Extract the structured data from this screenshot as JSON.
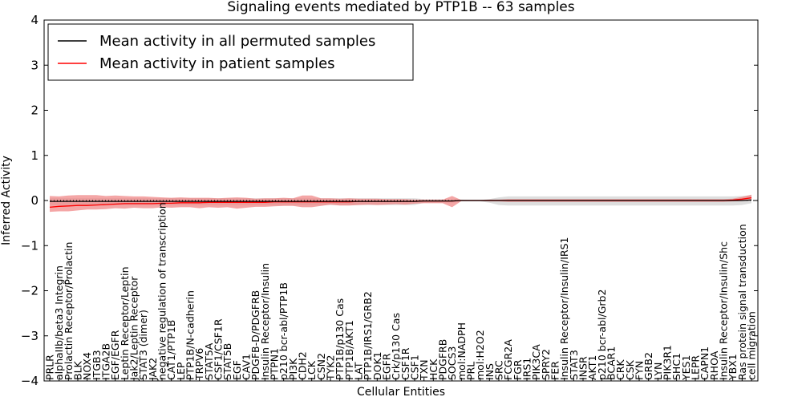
{
  "chart_data": {
    "type": "line",
    "title": "Signaling events mediated by PTP1B -- 63 samples",
    "xlabel": "Cellular Entities",
    "ylabel": "Inferred Activity",
    "ylim": [
      -4,
      4
    ],
    "yticks": [
      -4,
      -3,
      -2,
      -1,
      0,
      1,
      2,
      3,
      4
    ],
    "ytick_labels": [
      "−4",
      "−3",
      "−2",
      "−1",
      "0",
      "1",
      "2",
      "3",
      "4"
    ],
    "legend_position": "top-left",
    "categories": [
      "PRLR",
      "alphaIIb/beta3 Integrin",
      "Prolactin Receptor/Prolactin",
      "BLK",
      "NOX4",
      "ITGB3",
      "ITGA2B",
      "EGF/EGFR",
      "Leptin Receptor/Leptin",
      "Jak2/Leptin Receptor",
      "STAT3 (dimer)",
      "JAK2",
      "negative regulation of transcription",
      "CAT1/PTP1B",
      "LEP",
      "PTP1B/N-cadherin",
      "TRPV6",
      "STAT5A",
      "CSF1/CSF1R",
      "STAT5B",
      "EGF",
      "CAV1",
      "PDGFB-D/PDGFRB",
      "Insulin Receptor/Insulin",
      "PTPN1",
      "p210 bcr-abl/PTP1B",
      "PI3K",
      "CDH2",
      "LCK",
      "CSN2",
      "TYK2",
      "PTP1B/p130 Cas",
      "PTP1B/AKT1",
      "LAT",
      "PTP1B/IRS1/GRB2",
      "DOK1",
      "EGFR",
      "Crk/p130 Cas",
      "CSF1R",
      "CSF1",
      "TXN",
      "HCK",
      "PDGFRB",
      "SOCS3",
      "mol:NADPH",
      "PRL",
      "mol:H2O2",
      "INS",
      "SRC",
      "FCGR2A",
      "FGR",
      "IRS1",
      "PIK3CA",
      "SPRY2",
      "FER",
      "Insulin Receptor/Insulin/IRS1",
      "STAT3",
      "INSR",
      "AKT1",
      "p210 bcr-abl/Grb2",
      "BCAR1",
      "CRK",
      "CSK",
      "FYN",
      "GRB2",
      "LYN",
      "PIK3R1",
      "SHC1",
      "YES1",
      "LEPR",
      "CAPN1",
      "RHOA",
      "Insulin Receptor/Insulin/Shc",
      "YBX1",
      "Ras protein signal transduction",
      "cell migration"
    ],
    "series": [
      {
        "name": "Mean activity in all permuted samples",
        "color": "#000000",
        "values": [
          -0.02,
          -0.02,
          -0.02,
          -0.02,
          -0.02,
          -0.02,
          -0.02,
          -0.02,
          -0.02,
          -0.02,
          -0.02,
          -0.02,
          -0.02,
          -0.02,
          -0.02,
          -0.02,
          -0.02,
          -0.02,
          -0.02,
          -0.02,
          -0.02,
          -0.02,
          -0.02,
          -0.02,
          -0.02,
          -0.02,
          -0.02,
          -0.02,
          -0.02,
          -0.02,
          -0.02,
          -0.02,
          -0.02,
          -0.02,
          -0.02,
          -0.02,
          -0.02,
          -0.02,
          -0.02,
          -0.02,
          -0.01,
          -0.01,
          -0.01,
          -0.01,
          0.0,
          0.0,
          0.0,
          0.0,
          0.0,
          0.0,
          0.0,
          0.0,
          0.0,
          0.0,
          0.0,
          0.0,
          0.0,
          0.0,
          0.0,
          0.0,
          0.0,
          0.0,
          0.0,
          0.0,
          0.0,
          0.0,
          0.0,
          0.0,
          0.0,
          0.0,
          0.0,
          0.0,
          0.0,
          0.0,
          0.0,
          0.01
        ],
        "spread_color": "#d3d3d3",
        "spread_lower": [
          -0.1,
          -0.1,
          -0.1,
          -0.1,
          -0.1,
          -0.1,
          -0.1,
          -0.1,
          -0.1,
          -0.1,
          -0.1,
          -0.1,
          -0.1,
          -0.1,
          -0.1,
          -0.1,
          -0.1,
          -0.1,
          -0.1,
          -0.1,
          -0.1,
          -0.1,
          -0.1,
          -0.1,
          -0.1,
          -0.1,
          -0.1,
          -0.1,
          -0.1,
          -0.1,
          -0.1,
          -0.1,
          -0.1,
          -0.1,
          -0.1,
          -0.1,
          -0.1,
          -0.1,
          -0.1,
          -0.1,
          -0.05,
          -0.05,
          -0.05,
          -0.05,
          -0.02,
          -0.02,
          -0.02,
          -0.05,
          -0.1,
          -0.11,
          -0.11,
          -0.11,
          -0.11,
          -0.11,
          -0.11,
          -0.11,
          -0.11,
          -0.11,
          -0.11,
          -0.11,
          -0.11,
          -0.11,
          -0.11,
          -0.11,
          -0.11,
          -0.11,
          -0.11,
          -0.11,
          -0.11,
          -0.11,
          -0.11,
          -0.11,
          -0.11,
          -0.11,
          -0.1,
          -0.06
        ],
        "spread_upper": [
          0.05,
          0.05,
          0.05,
          0.05,
          0.05,
          0.05,
          0.05,
          0.05,
          0.05,
          0.05,
          0.05,
          0.05,
          0.05,
          0.05,
          0.05,
          0.05,
          0.05,
          0.05,
          0.05,
          0.05,
          0.05,
          0.05,
          0.05,
          0.05,
          0.05,
          0.05,
          0.05,
          0.05,
          0.05,
          0.05,
          0.05,
          0.05,
          0.05,
          0.05,
          0.05,
          0.05,
          0.05,
          0.05,
          0.05,
          0.05,
          0.03,
          0.03,
          0.03,
          0.02,
          0.02,
          0.01,
          0.01,
          0.03,
          0.07,
          0.09,
          0.09,
          0.09,
          0.09,
          0.09,
          0.09,
          0.09,
          0.09,
          0.09,
          0.09,
          0.09,
          0.09,
          0.09,
          0.09,
          0.09,
          0.09,
          0.09,
          0.09,
          0.09,
          0.09,
          0.09,
          0.09,
          0.09,
          0.09,
          0.09,
          0.1,
          0.12
        ]
      },
      {
        "name": "Mean activity in patient samples",
        "color": "#ff0000",
        "values": [
          -0.15,
          -0.13,
          -0.12,
          -0.11,
          -0.11,
          -0.1,
          -0.09,
          -0.08,
          -0.07,
          -0.07,
          -0.07,
          -0.07,
          -0.06,
          -0.06,
          -0.05,
          -0.05,
          -0.05,
          -0.04,
          -0.04,
          -0.04,
          -0.04,
          -0.04,
          -0.04,
          -0.04,
          -0.03,
          -0.03,
          -0.03,
          -0.03,
          -0.03,
          -0.03,
          -0.03,
          -0.03,
          -0.03,
          -0.02,
          -0.02,
          -0.02,
          -0.02,
          -0.02,
          -0.02,
          -0.02,
          -0.01,
          -0.01,
          -0.01,
          -0.01,
          0.0,
          0.0,
          0.0,
          0.0,
          0.0,
          0.0,
          0.0,
          0.0,
          0.0,
          0.0,
          0.0,
          0.0,
          0.0,
          0.0,
          0.0,
          0.0,
          0.0,
          0.0,
          0.0,
          0.0,
          0.0,
          0.0,
          0.0,
          0.0,
          0.0,
          0.0,
          0.0,
          0.0,
          0.0,
          0.01,
          0.03,
          0.06
        ],
        "spread_color": "#f08080",
        "spread_lower": [
          -0.25,
          -0.24,
          -0.24,
          -0.22,
          -0.2,
          -0.2,
          -0.19,
          -0.17,
          -0.18,
          -0.16,
          -0.17,
          -0.17,
          -0.15,
          -0.16,
          -0.15,
          -0.15,
          -0.17,
          -0.15,
          -0.16,
          -0.15,
          -0.18,
          -0.16,
          -0.14,
          -0.14,
          -0.13,
          -0.12,
          -0.12,
          -0.15,
          -0.15,
          -0.12,
          -0.09,
          -0.11,
          -0.11,
          -0.1,
          -0.09,
          -0.1,
          -0.09,
          -0.08,
          -0.09,
          -0.07,
          -0.06,
          -0.06,
          -0.06,
          -0.15,
          -0.01,
          -0.01,
          -0.01,
          -0.02,
          -0.02,
          -0.03,
          -0.03,
          -0.03,
          -0.03,
          -0.03,
          -0.03,
          -0.03,
          -0.03,
          -0.03,
          -0.03,
          -0.03,
          -0.03,
          -0.03,
          -0.03,
          -0.03,
          -0.03,
          -0.03,
          -0.03,
          -0.03,
          -0.03,
          -0.03,
          -0.03,
          -0.03,
          -0.03,
          -0.02,
          -0.01,
          0.0
        ],
        "spread_upper": [
          0.1,
          0.09,
          0.11,
          0.12,
          0.12,
          0.12,
          0.1,
          0.11,
          0.1,
          0.09,
          0.09,
          0.08,
          0.07,
          0.06,
          0.07,
          0.06,
          0.06,
          0.06,
          0.05,
          0.06,
          0.07,
          0.06,
          0.04,
          0.05,
          0.05,
          0.06,
          0.05,
          0.11,
          0.11,
          0.05,
          0.05,
          0.04,
          0.05,
          0.04,
          0.04,
          0.04,
          0.03,
          0.03,
          0.03,
          0.02,
          0.02,
          0.02,
          0.02,
          0.1,
          0.01,
          0.01,
          0.01,
          0.02,
          0.02,
          0.03,
          0.03,
          0.03,
          0.03,
          0.03,
          0.03,
          0.03,
          0.03,
          0.03,
          0.03,
          0.03,
          0.03,
          0.03,
          0.03,
          0.03,
          0.03,
          0.03,
          0.03,
          0.03,
          0.03,
          0.03,
          0.03,
          0.03,
          0.03,
          0.04,
          0.08,
          0.13
        ]
      }
    ],
    "reference_line": {
      "value": 0,
      "style": "dotted",
      "color": "#000000"
    }
  }
}
